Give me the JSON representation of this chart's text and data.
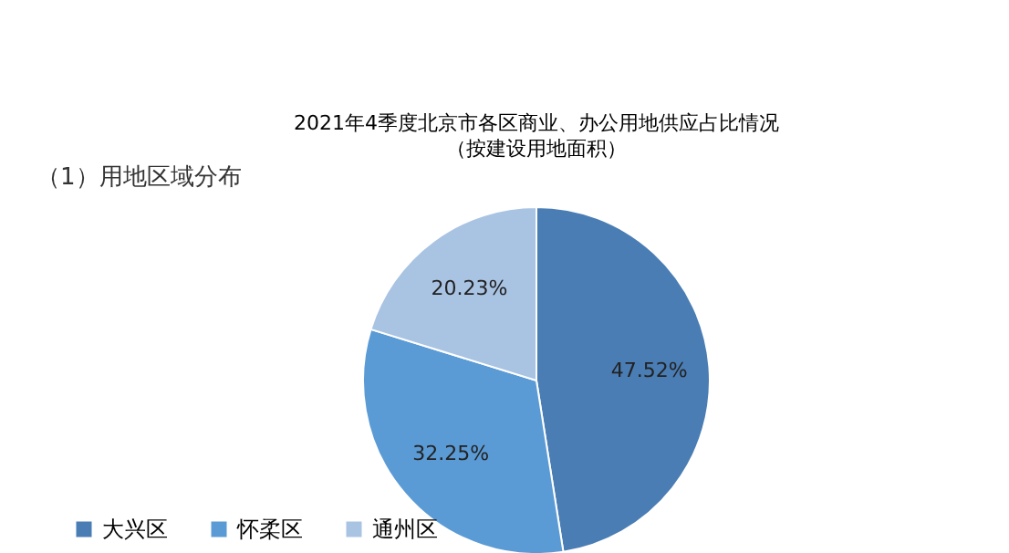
{
  "chart_data": {
    "type": "pie",
    "title": "2021年4季度北京市各区商业、办公用地供应占比情况",
    "subtitle": "（按建设用地面积）",
    "annotations": [
      "（1）用地区域分布"
    ],
    "categories": [
      "大兴区",
      "怀柔区",
      "通州区"
    ],
    "values": [
      47.52,
      32.25,
      20.23
    ],
    "value_labels": [
      "47.52%",
      "32.25%",
      "20.23%"
    ],
    "colors": [
      "#4a7db4",
      "#5b9bd5",
      "#a9c3e3"
    ],
    "legend": "bottom"
  }
}
